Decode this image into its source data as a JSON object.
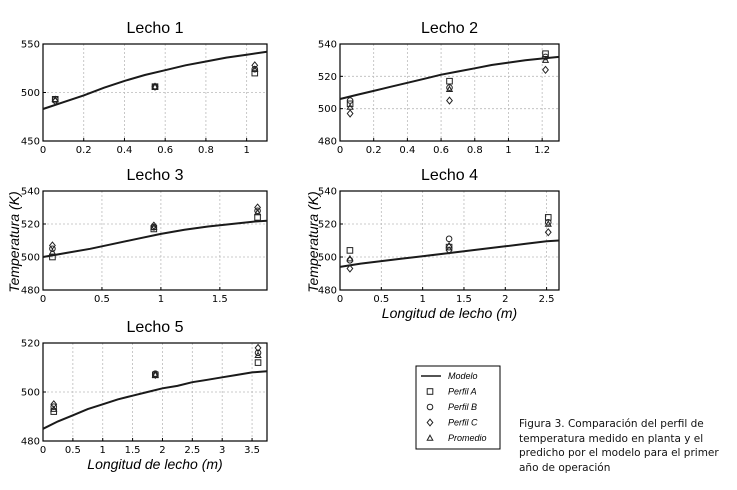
{
  "chart_data": [
    {
      "type": "line",
      "title": "Lecho 1",
      "xlim": [
        0,
        1.1
      ],
      "ylim": [
        450,
        550
      ],
      "xticks": [
        0,
        0.2,
        0.4,
        0.6,
        0.8,
        1
      ],
      "xtick_labels": [
        "0",
        "0.2",
        "0.4",
        "0.6",
        "0.8",
        "1"
      ],
      "yticks": [
        450,
        500,
        550
      ],
      "ytick_labels": [
        "450",
        "500",
        "550"
      ],
      "model": {
        "x": [
          0,
          0.1,
          0.2,
          0.3,
          0.4,
          0.5,
          0.6,
          0.7,
          0.8,
          0.9,
          1.0,
          1.1
        ],
        "y": [
          483,
          490,
          497,
          505,
          512,
          518,
          523,
          528,
          532,
          536,
          539,
          542
        ]
      },
      "points": [
        {
          "x": 0.06,
          "perfil_a": 493,
          "perfil_b": 493,
          "perfil_c": 491,
          "promedio": 493
        },
        {
          "x": 0.55,
          "perfil_a": 506,
          "perfil_b": 506,
          "perfil_c": 506,
          "promedio": 506
        },
        {
          "x": 1.04,
          "perfil_a": 520,
          "perfil_b": 524,
          "perfil_c": 528,
          "promedio": 524
        }
      ]
    },
    {
      "type": "line",
      "title": "Lecho 2",
      "xlim": [
        0,
        1.3
      ],
      "ylim": [
        480,
        540
      ],
      "xticks": [
        0,
        0.2,
        0.4,
        0.6,
        0.8,
        1,
        1.2
      ],
      "xtick_labels": [
        "0",
        "0.2",
        "0.4",
        "0.6",
        "0.8",
        "1",
        "1.2"
      ],
      "yticks": [
        480,
        500,
        520,
        540
      ],
      "ytick_labels": [
        "480",
        "500",
        "520",
        "540"
      ],
      "model": {
        "x": [
          0,
          0.1,
          0.2,
          0.3,
          0.4,
          0.5,
          0.6,
          0.7,
          0.8,
          0.9,
          1.0,
          1.1,
          1.2,
          1.3
        ],
        "y": [
          506,
          508.5,
          511,
          513.5,
          516,
          518.5,
          521,
          523,
          525,
          527,
          528.5,
          530,
          531,
          532
        ]
      },
      "points": [
        {
          "x": 0.06,
          "perfil_a": 503,
          "perfil_b": 505,
          "perfil_c": 497,
          "promedio": 501
        },
        {
          "x": 0.65,
          "perfil_a": 517,
          "perfil_b": 513,
          "perfil_c": 505,
          "promedio": 512
        },
        {
          "x": 1.22,
          "perfil_a": 534,
          "perfil_b": 532,
          "perfil_c": 524,
          "promedio": 530
        }
      ]
    },
    {
      "type": "line",
      "title": "Lecho 3",
      "xlim": [
        0,
        1.9
      ],
      "ylim": [
        480,
        540
      ],
      "xticks": [
        0,
        0.5,
        1,
        1.5
      ],
      "xtick_labels": [
        "0",
        "0.5",
        "1",
        "1.5"
      ],
      "yticks": [
        480,
        500,
        520,
        540
      ],
      "ytick_labels": [
        "480",
        "500",
        "520",
        "540"
      ],
      "model": {
        "x": [
          0,
          0.2,
          0.4,
          0.6,
          0.8,
          1.0,
          1.2,
          1.4,
          1.6,
          1.8,
          1.9
        ],
        "y": [
          500,
          502.5,
          505,
          508,
          511,
          514,
          516.5,
          518.5,
          520,
          521.5,
          522
        ]
      },
      "points": [
        {
          "x": 0.08,
          "perfil_a": 500,
          "perfil_b": 505,
          "perfil_c": 507,
          "promedio": 503
        },
        {
          "x": 0.94,
          "perfil_a": 517,
          "perfil_b": 518,
          "perfil_c": 519,
          "promedio": 518
        },
        {
          "x": 1.82,
          "perfil_a": 524,
          "perfil_b": 528,
          "perfil_c": 530,
          "promedio": 527
        }
      ]
    },
    {
      "type": "line",
      "title": "Lecho 4",
      "xlim": [
        0,
        2.65
      ],
      "ylim": [
        480,
        540
      ],
      "xticks": [
        0,
        0.5,
        1,
        1.5,
        2,
        2.5
      ],
      "xtick_labels": [
        "0",
        "0.5",
        "1",
        "1.5",
        "2",
        "2.5"
      ],
      "yticks": [
        480,
        500,
        520,
        540
      ],
      "ytick_labels": [
        "480",
        "500",
        "520",
        "540"
      ],
      "xlabel": "Longitud de lecho (m)",
      "model": {
        "x": [
          0,
          0.25,
          0.5,
          0.75,
          1.0,
          1.25,
          1.5,
          1.75,
          2.0,
          2.25,
          2.5,
          2.65
        ],
        "y": [
          494,
          496,
          497.5,
          499,
          500.5,
          502,
          503.5,
          505,
          506.5,
          508,
          509.5,
          510
        ]
      },
      "points": [
        {
          "x": 0.12,
          "perfil_a": 504,
          "perfil_b": 498,
          "perfil_c": 493,
          "promedio": 499
        },
        {
          "x": 1.32,
          "perfil_a": 506,
          "perfil_b": 511,
          "perfil_c": 504,
          "promedio": 507
        },
        {
          "x": 2.52,
          "perfil_a": 524,
          "perfil_b": 521,
          "perfil_c": 515,
          "promedio": 520
        }
      ]
    },
    {
      "type": "line",
      "title": "Lecho 5",
      "xlim": [
        0,
        3.75
      ],
      "ylim": [
        480,
        520
      ],
      "xticks": [
        0,
        0.5,
        1,
        1.5,
        2,
        2.5,
        3,
        3.5
      ],
      "xtick_labels": [
        "0",
        "0.5",
        "1",
        "1.5",
        "2",
        "2.5",
        "3",
        "3.5"
      ],
      "yticks": [
        480,
        500,
        520
      ],
      "ytick_labels": [
        "480",
        "500",
        "520"
      ],
      "xlabel": "Longitud de lecho (m)",
      "model": {
        "x": [
          0,
          0.25,
          0.5,
          0.75,
          1.0,
          1.25,
          1.5,
          1.75,
          2.0,
          2.25,
          2.5,
          2.75,
          3.0,
          3.25,
          3.5,
          3.75
        ],
        "y": [
          485,
          488,
          490.5,
          493,
          495,
          497,
          498.5,
          500,
          501.5,
          502.5,
          504,
          505,
          506,
          507,
          508,
          508.5
        ]
      },
      "points": [
        {
          "x": 0.18,
          "perfil_a": 492,
          "perfil_b": 494,
          "perfil_c": 495,
          "promedio": 493
        },
        {
          "x": 1.88,
          "perfil_a": 507,
          "perfil_b": 507.5,
          "perfil_c": 507,
          "promedio": 507
        },
        {
          "x": 3.6,
          "perfil_a": 512,
          "perfil_b": 516,
          "perfil_c": 518,
          "promedio": 515
        }
      ]
    }
  ],
  "ylabel": "Temperatura (K)",
  "legend": {
    "items": [
      {
        "key": "modelo",
        "label": "Modelo",
        "symbol": "line"
      },
      {
        "key": "perfil_a",
        "label": "Perfil A",
        "symbol": "square"
      },
      {
        "key": "perfil_b",
        "label": "Perfil B",
        "symbol": "circle"
      },
      {
        "key": "perfil_c",
        "label": "Perfil C",
        "symbol": "diamond"
      },
      {
        "key": "promedio",
        "label": "Promedio",
        "symbol": "triangle"
      }
    ]
  },
  "caption": "Figura 3. Comparación del perfil de temperatura medido en planta y el predicho por el modelo para el primer año de operación",
  "colors": {
    "line": "#1a1a1a",
    "grid": "#bbbbbb",
    "marker": "#222222",
    "frame": "#000000"
  }
}
